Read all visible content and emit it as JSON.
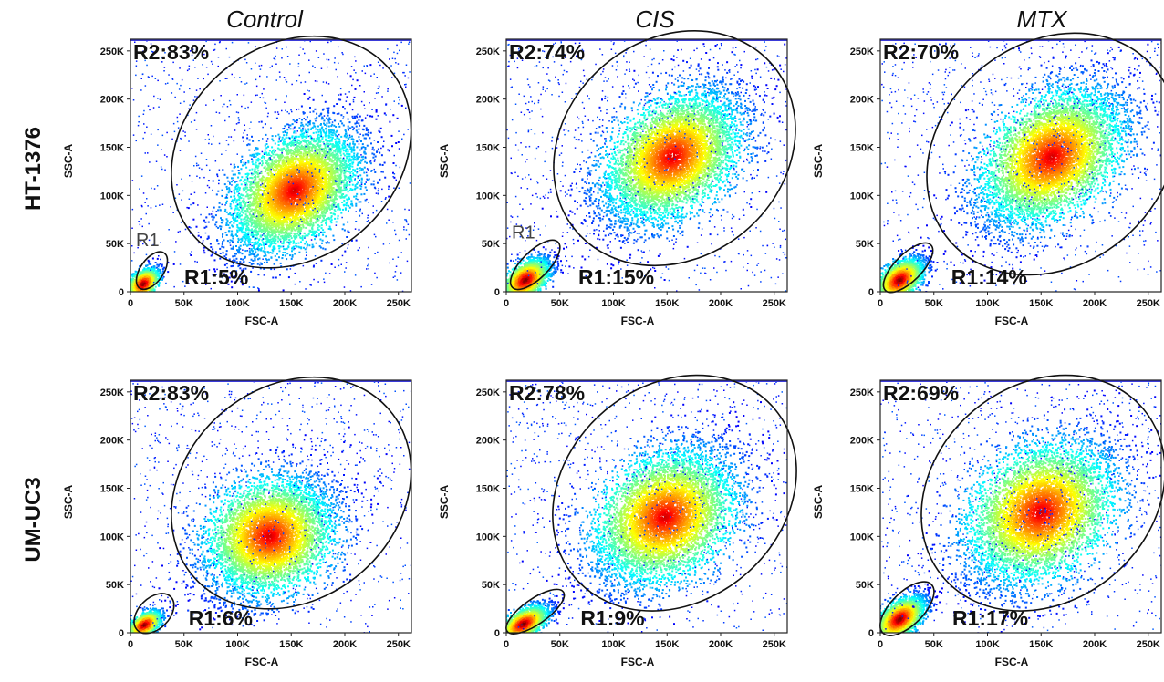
{
  "column_titles": [
    "Control",
    "CIS",
    "MTX"
  ],
  "row_labels": [
    "HT-1376",
    "UM-UC3"
  ],
  "chart_data": [
    {
      "type": "scatter",
      "row": "HT-1376",
      "column": "Control",
      "xlabel": "FSC-A",
      "ylabel": "SSC-A",
      "xlim": [
        0,
        262144
      ],
      "ylim": [
        0,
        262144
      ],
      "x_ticks": [
        "0",
        "50K",
        "100K",
        "150K",
        "200K",
        "250K"
      ],
      "y_ticks": [
        "0",
        "50K",
        "100K",
        "150K",
        "200K",
        "250K"
      ],
      "gates": [
        {
          "name": "R1",
          "label": "R1",
          "percent_text": "R1:5%",
          "percent": 5,
          "center": [
            20000,
            22000
          ],
          "radii": [
            20000,
            12000
          ],
          "angle": -55
        },
        {
          "name": "R2",
          "label": "",
          "percent_text": "R2:83%",
          "percent": 83,
          "center": [
            150000,
            145000
          ],
          "radii": [
            120000,
            110000
          ],
          "angle": -40
        }
      ],
      "populations": [
        {
          "cx": 12000,
          "cy": 8000,
          "sx": 10000,
          "sy": 9000,
          "rot": -50,
          "n": 1300
        },
        {
          "cx": 153000,
          "cy": 105000,
          "sx": 38000,
          "sy": 36000,
          "rot": -50,
          "n": 6500
        }
      ]
    },
    {
      "type": "scatter",
      "row": "HT-1376",
      "column": "CIS",
      "xlabel": "FSC-A",
      "ylabel": "SSC-A",
      "xlim": [
        0,
        262144
      ],
      "ylim": [
        0,
        262144
      ],
      "x_ticks": [
        "0",
        "50K",
        "100K",
        "150K",
        "200K",
        "250K"
      ],
      "y_ticks": [
        "0",
        "50K",
        "100K",
        "150K",
        "200K",
        "250K"
      ],
      "gates": [
        {
          "name": "R1",
          "label": "R1",
          "percent_text": "R1:15%",
          "percent": 15,
          "center": [
            27000,
            28000
          ],
          "radii": [
            30000,
            14000
          ],
          "angle": -45
        },
        {
          "name": "R2",
          "label": "",
          "percent_text": "R2:74%",
          "percent": 74,
          "center": [
            157000,
            149000
          ],
          "radii": [
            120000,
            113000
          ],
          "angle": -40
        }
      ],
      "populations": [
        {
          "cx": 18000,
          "cy": 12000,
          "sx": 14000,
          "sy": 12000,
          "rot": -45,
          "n": 2500
        },
        {
          "cx": 155000,
          "cy": 140000,
          "sx": 40000,
          "sy": 40000,
          "rot": -50,
          "n": 6500
        }
      ]
    },
    {
      "type": "scatter",
      "row": "HT-1376",
      "column": "MTX",
      "xlabel": "FSC-A",
      "ylabel": "SSC-A",
      "xlim": [
        0,
        262144
      ],
      "ylim": [
        0,
        262144
      ],
      "x_ticks": [
        "0",
        "50K",
        "100K",
        "150K",
        "200K",
        "250K"
      ],
      "y_ticks": [
        "0",
        "50K",
        "100K",
        "150K",
        "200K",
        "250K"
      ],
      "gates": [
        {
          "name": "R1",
          "label": "",
          "percent_text": "R1:14%",
          "percent": 14,
          "center": [
            26000,
            25000
          ],
          "radii": [
            30000,
            14000
          ],
          "angle": -45
        },
        {
          "name": "R2",
          "label": "",
          "percent_text": "R2:70%",
          "percent": 70,
          "center": [
            160000,
            143000
          ],
          "radii": [
            125000,
            115000
          ],
          "angle": -40
        }
      ],
      "populations": [
        {
          "cx": 18000,
          "cy": 12000,
          "sx": 14000,
          "sy": 12000,
          "rot": -45,
          "n": 2400
        },
        {
          "cx": 160000,
          "cy": 140000,
          "sx": 42000,
          "sy": 42000,
          "rot": -50,
          "n": 6500
        }
      ]
    },
    {
      "type": "scatter",
      "row": "UM-UC3",
      "column": "Control",
      "xlabel": "FSC-A",
      "ylabel": "SSC-A",
      "xlim": [
        0,
        262144
      ],
      "ylim": [
        0,
        262144
      ],
      "x_ticks": [
        "0",
        "50K",
        "100K",
        "150K",
        "200K",
        "250K"
      ],
      "y_ticks": [
        "0",
        "50K",
        "100K",
        "150K",
        "200K",
        "250K"
      ],
      "gates": [
        {
          "name": "R1",
          "label": "",
          "percent_text": "R1:6%",
          "percent": 6,
          "center": [
            22000,
            20000
          ],
          "radii": [
            22000,
            16000
          ],
          "angle": -45
        },
        {
          "name": "R2",
          "label": "",
          "percent_text": "R2:83%",
          "percent": 83,
          "center": [
            150000,
            145000
          ],
          "radii": [
            120000,
            110000
          ],
          "angle": -40
        }
      ],
      "populations": [
        {
          "cx": 13000,
          "cy": 8000,
          "sx": 10000,
          "sy": 8000,
          "rot": -40,
          "n": 1400
        },
        {
          "cx": 130000,
          "cy": 100000,
          "sx": 34000,
          "sy": 42000,
          "rot": -45,
          "n": 6000
        }
      ]
    },
    {
      "type": "scatter",
      "row": "UM-UC3",
      "column": "CIS",
      "xlabel": "FSC-A",
      "ylabel": "SSC-A",
      "xlim": [
        0,
        262144
      ],
      "ylim": [
        0,
        262144
      ],
      "x_ticks": [
        "0",
        "50K",
        "100K",
        "150K",
        "200K",
        "250K"
      ],
      "y_ticks": [
        "0",
        "50K",
        "100K",
        "150K",
        "200K",
        "250K"
      ],
      "gates": [
        {
          "name": "R1",
          "label": "",
          "percent_text": "R1:9%",
          "percent": 9,
          "center": [
            27000,
            22000
          ],
          "radii": [
            32000,
            13000
          ],
          "angle": -35
        },
        {
          "name": "R2",
          "label": "",
          "percent_text": "R2:78%",
          "percent": 78,
          "center": [
            157000,
            145000
          ],
          "radii": [
            122000,
            112000
          ],
          "angle": -40
        }
      ],
      "populations": [
        {
          "cx": 16000,
          "cy": 9000,
          "sx": 14000,
          "sy": 10000,
          "rot": -35,
          "n": 2000
        },
        {
          "cx": 148000,
          "cy": 120000,
          "sx": 40000,
          "sy": 44000,
          "rot": -50,
          "n": 6500
        }
      ]
    },
    {
      "type": "scatter",
      "row": "UM-UC3",
      "column": "MTX",
      "xlabel": "FSC-A",
      "ylabel": "SSC-A",
      "xlim": [
        0,
        262144
      ],
      "ylim": [
        0,
        262144
      ],
      "x_ticks": [
        "0",
        "50K",
        "100K",
        "150K",
        "200K",
        "250K"
      ],
      "y_ticks": [
        "0",
        "50K",
        "100K",
        "150K",
        "200K",
        "250K"
      ],
      "gates": [
        {
          "name": "R1",
          "label": "",
          "percent_text": "R1:17%",
          "percent": 17,
          "center": [
            25000,
            25000
          ],
          "radii": [
            32000,
            17000
          ],
          "angle": -45
        },
        {
          "name": "R2",
          "label": "",
          "percent_text": "R2:69%",
          "percent": 69,
          "center": [
            152000,
            145000
          ],
          "radii": [
            122000,
            112000
          ],
          "angle": -40
        }
      ],
      "populations": [
        {
          "cx": 18000,
          "cy": 14000,
          "sx": 15000,
          "sy": 12000,
          "rot": -45,
          "n": 2800
        },
        {
          "cx": 150000,
          "cy": 125000,
          "sx": 42000,
          "sy": 46000,
          "rot": -50,
          "n": 6500
        }
      ]
    }
  ]
}
